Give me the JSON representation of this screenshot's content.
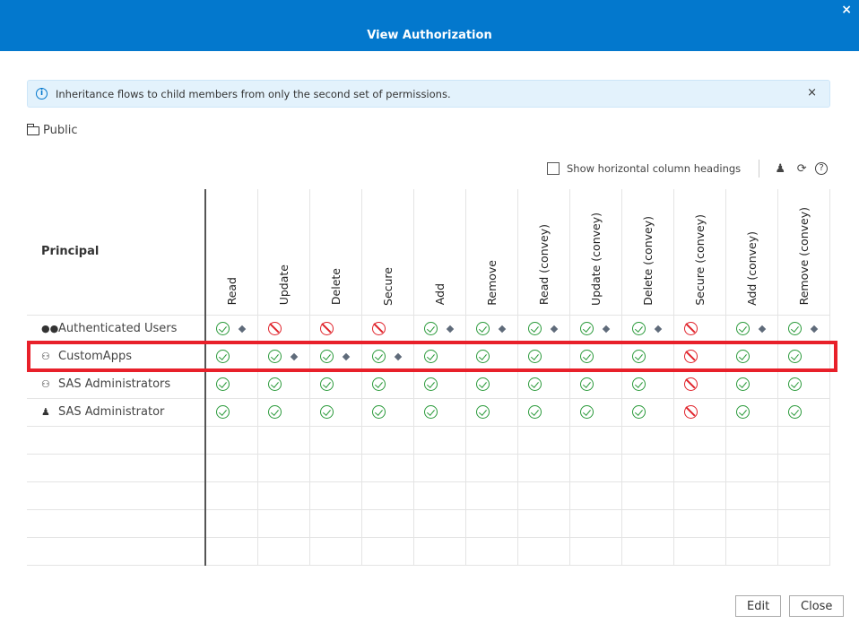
{
  "dialog": {
    "title": "View Authorization",
    "close_icon": "×"
  },
  "info": {
    "message": "Inheritance flows to child members from only the second set of permissions.",
    "close": "×"
  },
  "folder": {
    "name": "Public"
  },
  "toolbar": {
    "checkbox_label": "Show horizontal column headings",
    "checked": false,
    "help": "?",
    "refresh": "⟳",
    "user": "♟"
  },
  "table": {
    "principal_header": "Principal",
    "columns": [
      "Read",
      "Update",
      "Delete",
      "Secure",
      "Add",
      "Remove",
      "Read (convey)",
      "Update (convey)",
      "Delete (convey)",
      "Secure (convey)",
      "Add (convey)",
      "Remove (convey)"
    ],
    "legend": {
      "g": "grant",
      "d": "deny",
      "+": "diamond indicator"
    },
    "rows": [
      {
        "name": "Authenticated Users",
        "type": "group",
        "cells": [
          "g+",
          "d",
          "d",
          "d",
          "g+",
          "g+",
          "g+",
          "g+",
          "g+",
          "d",
          "g+",
          "g+"
        ]
      },
      {
        "name": "CustomApps",
        "type": "custom-group",
        "highlighted": true,
        "cells": [
          "g",
          "g+",
          "g+",
          "g+",
          "g",
          "g",
          "g",
          "g",
          "g",
          "d",
          "g",
          "g"
        ]
      },
      {
        "name": "SAS Administrators",
        "type": "custom-group",
        "cells": [
          "g",
          "g",
          "g",
          "g",
          "g",
          "g",
          "g",
          "g",
          "g",
          "d",
          "g",
          "g"
        ]
      },
      {
        "name": "SAS Administrator",
        "type": "user",
        "cells": [
          "g",
          "g",
          "g",
          "g",
          "g",
          "g",
          "g",
          "g",
          "g",
          "d",
          "g",
          "g"
        ]
      }
    ],
    "empty_rows": 5
  },
  "buttons": {
    "edit": "Edit",
    "close": "Close"
  }
}
